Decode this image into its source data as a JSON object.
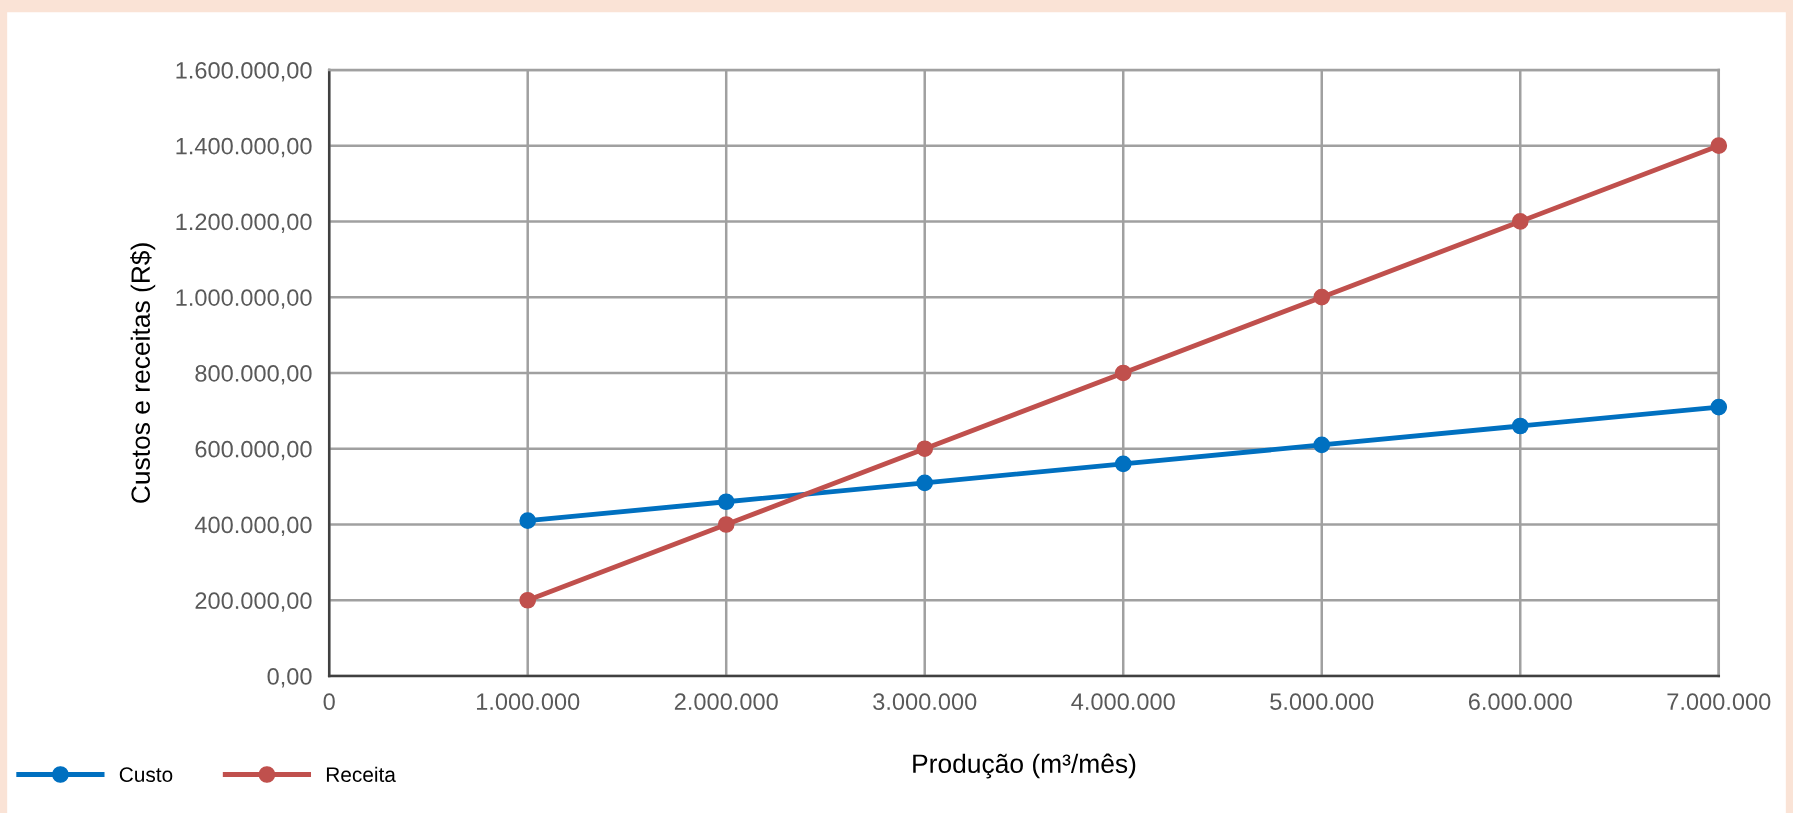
{
  "chart_data": {
    "type": "line",
    "xlabel": "Produção (m³/mês)",
    "ylabel": "Custos e receitas (R$)",
    "x": [
      1000000,
      2000000,
      3000000,
      4000000,
      5000000,
      6000000,
      7000000
    ],
    "series": [
      {
        "name": "Custo",
        "color": "#0070c0",
        "values": [
          410000,
          460000,
          510000,
          560000,
          610000,
          660000,
          710000
        ]
      },
      {
        "name": "Receita",
        "color": "#c0504d",
        "values": [
          200000,
          400000,
          600000,
          800000,
          1000000,
          1200000,
          1400000
        ]
      }
    ],
    "xlim": [
      0,
      7000000
    ],
    "xticks": [
      {
        "value": 0,
        "label": "0"
      },
      {
        "value": 1000000,
        "label": "1.000.000"
      },
      {
        "value": 2000000,
        "label": "2.000.000"
      },
      {
        "value": 3000000,
        "label": "3.000.000"
      },
      {
        "value": 4000000,
        "label": "4.000.000"
      },
      {
        "value": 5000000,
        "label": "5.000.000"
      },
      {
        "value": 6000000,
        "label": "6.000.000"
      },
      {
        "value": 7000000,
        "label": "7.000.000"
      }
    ],
    "ylim": [
      0,
      1600000
    ],
    "yticks": [
      {
        "value": 0,
        "label": "0,00"
      },
      {
        "value": 200000,
        "label": "200.000,00"
      },
      {
        "value": 400000,
        "label": "400.000,00"
      },
      {
        "value": 600000,
        "label": "600.000,00"
      },
      {
        "value": 800000,
        "label": "800.000,00"
      },
      {
        "value": 1000000,
        "label": "1.000.000,00"
      },
      {
        "value": 1200000,
        "label": "1.200.000,00"
      },
      {
        "value": 1400000,
        "label": "1.400.000,00"
      },
      {
        "value": 1600000,
        "label": "1.600.000,00"
      }
    ],
    "grid": true,
    "legend": "bottom left",
    "marker": "circle",
    "line_style": "solid"
  }
}
